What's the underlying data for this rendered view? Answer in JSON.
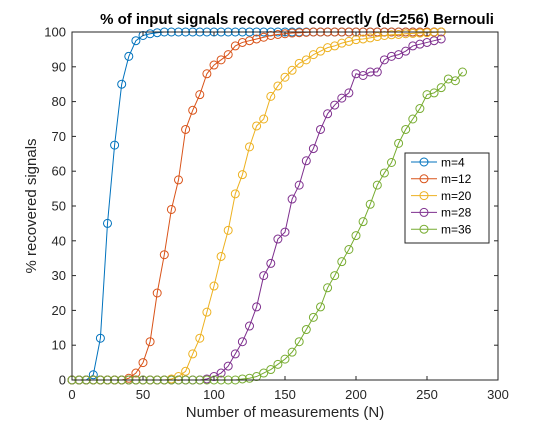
{
  "chart_data": {
    "type": "line",
    "title": "% of input signals recovered correctly (d=256) Bernouli",
    "xlabel": "Number of measurements (N)",
    "ylabel": "% recovered signals",
    "xlim": [
      0,
      300
    ],
    "ylim": [
      0,
      100
    ],
    "x_ticks": [
      0,
      50,
      100,
      150,
      200,
      250,
      300
    ],
    "y_ticks": [
      0,
      10,
      20,
      30,
      40,
      50,
      60,
      70,
      80,
      90,
      100
    ],
    "x_tick_labels": [
      "0",
      "50",
      "100",
      "150",
      "200",
      "250",
      "300"
    ],
    "y_tick_labels": [
      "0",
      "10",
      "20",
      "30",
      "40",
      "50",
      "60",
      "70",
      "80",
      "90",
      "100"
    ],
    "grid": false,
    "legend_position": "right",
    "marker": "circle",
    "series": [
      {
        "name": "m=4",
        "color": "#0072BD",
        "points": [
          [
            0,
            0
          ],
          [
            5,
            0
          ],
          [
            10,
            0
          ],
          [
            15,
            1.5
          ],
          [
            20,
            12
          ],
          [
            25,
            45
          ],
          [
            30,
            67.5
          ],
          [
            35,
            85
          ],
          [
            40,
            93
          ],
          [
            45,
            97.5
          ],
          [
            50,
            99
          ],
          [
            55,
            99.5
          ],
          [
            60,
            99.8
          ],
          [
            65,
            100
          ],
          [
            70,
            100
          ],
          [
            75,
            100
          ],
          [
            80,
            100
          ],
          [
            85,
            100
          ],
          [
            90,
            100
          ],
          [
            95,
            100
          ],
          [
            100,
            100
          ],
          [
            105,
            100
          ],
          [
            110,
            100
          ],
          [
            115,
            100
          ],
          [
            120,
            100
          ],
          [
            125,
            100
          ],
          [
            130,
            100
          ],
          [
            135,
            100
          ],
          [
            140,
            100
          ],
          [
            145,
            100
          ],
          [
            150,
            100
          ],
          [
            155,
            100
          ],
          [
            160,
            100
          ],
          [
            165,
            100
          ],
          [
            170,
            100
          ],
          [
            175,
            100
          ],
          [
            180,
            100
          ],
          [
            185,
            100
          ],
          [
            190,
            100
          ],
          [
            195,
            100
          ],
          [
            200,
            100
          ],
          [
            205,
            100
          ],
          [
            210,
            100
          ],
          [
            215,
            100
          ],
          [
            220,
            100
          ],
          [
            225,
            100
          ],
          [
            230,
            100
          ],
          [
            235,
            100
          ],
          [
            240,
            100
          ],
          [
            245,
            100
          ],
          [
            250,
            100
          ],
          [
            255,
            100
          ],
          [
            260,
            100
          ]
        ]
      },
      {
        "name": "m=12",
        "color": "#D95319",
        "points": [
          [
            0,
            0
          ],
          [
            5,
            0
          ],
          [
            10,
            0
          ],
          [
            15,
            0
          ],
          [
            20,
            0
          ],
          [
            25,
            0
          ],
          [
            30,
            0
          ],
          [
            35,
            0
          ],
          [
            40,
            0.5
          ],
          [
            45,
            2
          ],
          [
            50,
            5
          ],
          [
            55,
            11
          ],
          [
            60,
            25
          ],
          [
            65,
            36
          ],
          [
            70,
            49
          ],
          [
            75,
            57.5
          ],
          [
            80,
            72
          ],
          [
            85,
            77.5
          ],
          [
            90,
            82
          ],
          [
            95,
            88
          ],
          [
            100,
            90.5
          ],
          [
            105,
            92
          ],
          [
            110,
            93.5
          ],
          [
            115,
            96
          ],
          [
            120,
            97
          ],
          [
            125,
            97.5
          ],
          [
            130,
            98
          ],
          [
            135,
            98.5
          ],
          [
            140,
            99
          ],
          [
            145,
            99.3
          ],
          [
            150,
            99.5
          ],
          [
            155,
            99.7
          ],
          [
            160,
            99.8
          ],
          [
            165,
            99.9
          ],
          [
            170,
            100
          ],
          [
            175,
            100
          ],
          [
            180,
            100
          ],
          [
            185,
            100
          ],
          [
            190,
            100
          ],
          [
            195,
            100
          ],
          [
            200,
            100
          ],
          [
            205,
            100
          ],
          [
            210,
            100
          ],
          [
            215,
            100
          ],
          [
            220,
            100
          ],
          [
            225,
            100
          ],
          [
            230,
            100
          ],
          [
            235,
            100
          ],
          [
            240,
            100
          ],
          [
            245,
            100
          ],
          [
            250,
            100
          ],
          [
            255,
            100
          ],
          [
            260,
            100
          ]
        ]
      },
      {
        "name": "m=20",
        "color": "#EDB120",
        "points": [
          [
            0,
            0
          ],
          [
            5,
            0
          ],
          [
            10,
            0
          ],
          [
            15,
            0
          ],
          [
            20,
            0
          ],
          [
            25,
            0
          ],
          [
            30,
            0
          ],
          [
            35,
            0
          ],
          [
            40,
            0
          ],
          [
            45,
            0
          ],
          [
            50,
            0
          ],
          [
            55,
            0
          ],
          [
            60,
            0
          ],
          [
            65,
            0
          ],
          [
            70,
            0.3
          ],
          [
            75,
            1
          ],
          [
            80,
            2.5
          ],
          [
            85,
            7.5
          ],
          [
            90,
            12
          ],
          [
            95,
            19.5
          ],
          [
            100,
            27
          ],
          [
            105,
            35.5
          ],
          [
            110,
            43
          ],
          [
            115,
            53.5
          ],
          [
            120,
            59
          ],
          [
            125,
            67
          ],
          [
            130,
            73
          ],
          [
            135,
            75
          ],
          [
            140,
            81.5
          ],
          [
            145,
            84.5
          ],
          [
            150,
            87
          ],
          [
            155,
            89
          ],
          [
            160,
            91
          ],
          [
            165,
            92
          ],
          [
            170,
            93.5
          ],
          [
            175,
            94.5
          ],
          [
            180,
            95.5
          ],
          [
            185,
            96
          ],
          [
            190,
            96.8
          ],
          [
            195,
            97.3
          ],
          [
            200,
            97.8
          ],
          [
            205,
            98
          ],
          [
            210,
            98.3
          ],
          [
            215,
            98.7
          ],
          [
            220,
            99
          ],
          [
            225,
            99.2
          ],
          [
            230,
            99.3
          ],
          [
            235,
            99.5
          ],
          [
            240,
            99.6
          ],
          [
            245,
            99.7
          ],
          [
            250,
            99.8
          ],
          [
            255,
            99.9
          ],
          [
            260,
            100
          ]
        ]
      },
      {
        "name": "m=28",
        "color": "#7E2F8E",
        "points": [
          [
            0,
            0
          ],
          [
            5,
            0
          ],
          [
            10,
            0
          ],
          [
            15,
            0
          ],
          [
            20,
            0
          ],
          [
            25,
            0
          ],
          [
            30,
            0
          ],
          [
            35,
            0
          ],
          [
            40,
            0
          ],
          [
            45,
            0
          ],
          [
            50,
            0
          ],
          [
            55,
            0
          ],
          [
            60,
            0
          ],
          [
            65,
            0
          ],
          [
            70,
            0
          ],
          [
            75,
            0
          ],
          [
            80,
            0
          ],
          [
            85,
            0
          ],
          [
            90,
            0
          ],
          [
            95,
            0.3
          ],
          [
            100,
            1
          ],
          [
            105,
            2
          ],
          [
            110,
            4
          ],
          [
            115,
            7.5
          ],
          [
            120,
            11
          ],
          [
            125,
            15.5
          ],
          [
            130,
            21
          ],
          [
            135,
            30
          ],
          [
            140,
            33.5
          ],
          [
            145,
            40.5
          ],
          [
            150,
            42.5
          ],
          [
            155,
            52
          ],
          [
            160,
            56
          ],
          [
            165,
            63
          ],
          [
            170,
            66.5
          ],
          [
            175,
            72
          ],
          [
            180,
            76.5
          ],
          [
            185,
            79
          ],
          [
            190,
            81
          ],
          [
            195,
            82.5
          ],
          [
            200,
            88
          ],
          [
            205,
            87.5
          ],
          [
            210,
            88.5
          ],
          [
            215,
            88.5
          ],
          [
            220,
            92
          ],
          [
            225,
            93
          ],
          [
            230,
            93.5
          ],
          [
            235,
            94.5
          ],
          [
            240,
            96
          ],
          [
            245,
            96.5
          ],
          [
            250,
            97
          ],
          [
            255,
            97.5
          ],
          [
            260,
            98
          ]
        ]
      },
      {
        "name": "m=36",
        "color": "#77AC30",
        "points": [
          [
            0,
            0
          ],
          [
            5,
            0
          ],
          [
            10,
            0
          ],
          [
            15,
            0
          ],
          [
            20,
            0
          ],
          [
            25,
            0
          ],
          [
            30,
            0
          ],
          [
            35,
            0
          ],
          [
            40,
            0
          ],
          [
            45,
            0
          ],
          [
            50,
            0
          ],
          [
            55,
            0
          ],
          [
            60,
            0
          ],
          [
            65,
            0
          ],
          [
            70,
            0
          ],
          [
            75,
            0
          ],
          [
            80,
            0
          ],
          [
            85,
            0
          ],
          [
            90,
            0
          ],
          [
            95,
            0
          ],
          [
            100,
            0
          ],
          [
            105,
            0
          ],
          [
            110,
            0
          ],
          [
            115,
            0
          ],
          [
            120,
            0.3
          ],
          [
            125,
            0.5
          ],
          [
            130,
            1
          ],
          [
            135,
            2
          ],
          [
            140,
            3
          ],
          [
            145,
            4.5
          ],
          [
            150,
            6
          ],
          [
            155,
            8
          ],
          [
            160,
            11
          ],
          [
            165,
            14.5
          ],
          [
            170,
            18
          ],
          [
            175,
            21
          ],
          [
            180,
            26.5
          ],
          [
            185,
            30
          ],
          [
            190,
            34
          ],
          [
            195,
            37.5
          ],
          [
            200,
            41.5
          ],
          [
            205,
            45.5
          ],
          [
            210,
            50.5
          ],
          [
            215,
            56
          ],
          [
            220,
            59.5
          ],
          [
            225,
            62.5
          ],
          [
            230,
            68
          ],
          [
            235,
            72
          ],
          [
            240,
            75
          ],
          [
            245,
            78
          ],
          [
            250,
            82
          ],
          [
            255,
            82.5
          ],
          [
            260,
            84
          ],
          [
            265,
            86.5
          ],
          [
            270,
            86
          ],
          [
            275,
            88.5
          ]
        ]
      }
    ]
  }
}
